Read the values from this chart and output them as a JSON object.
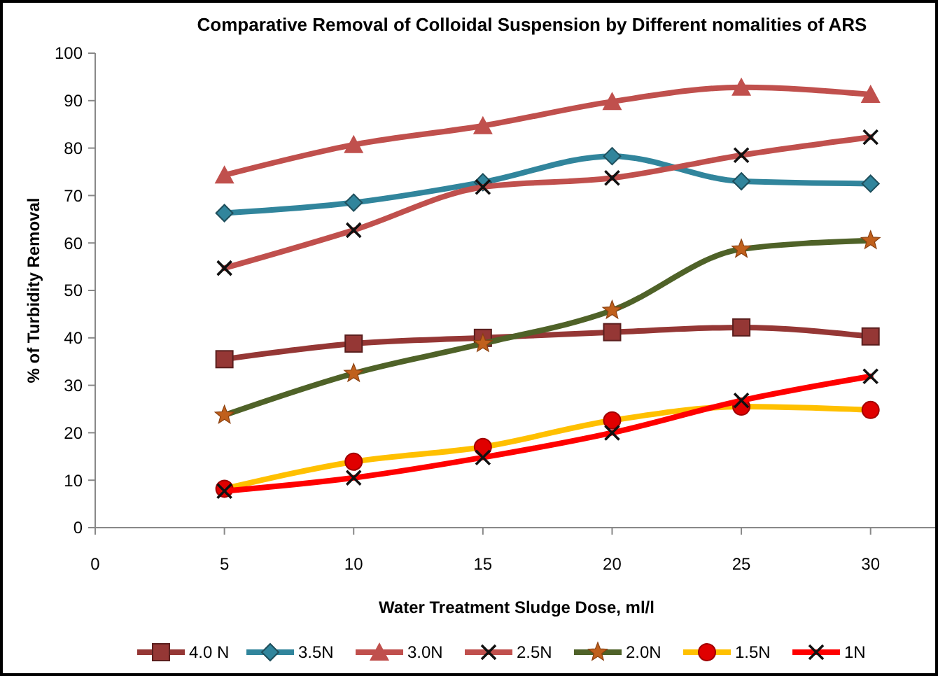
{
  "chart_data": {
    "type": "line",
    "title": "Comparative Removal of Colloidal Suspension by Different nomalities of ARS",
    "xlabel": "Water Treatment Sludge Dose, ml/l",
    "ylabel": "% of Turbidity Removal",
    "x": [
      5,
      10,
      15,
      20,
      25,
      30
    ],
    "xlim": [
      0,
      32.5
    ],
    "xticks": [
      0,
      5,
      10,
      15,
      20,
      25,
      30
    ],
    "ylim": [
      0,
      100
    ],
    "yticks": [
      0,
      10,
      20,
      30,
      40,
      50,
      60,
      70,
      80,
      90,
      100
    ],
    "grid": false,
    "legend": "bottom",
    "line_style": "solid",
    "series": [
      {
        "name": "4.0 N",
        "color": "#953735",
        "marker": "square",
        "values": [
          35.5,
          38.8,
          40,
          41.2,
          42.2,
          40.3
        ]
      },
      {
        "name": "3.5N",
        "color": "#31859c",
        "marker": "diamond",
        "values": [
          66.3,
          68.5,
          72.8,
          78.3,
          73,
          72.5
        ]
      },
      {
        "name": "3.0N",
        "color": "#c0504d",
        "marker": "triangle",
        "values": [
          74.3,
          80.7,
          84.7,
          89.8,
          92.8,
          91.3
        ]
      },
      {
        "name": "2.5N",
        "color": "#c0504d",
        "marker": "cross",
        "values": [
          54.7,
          62.7,
          71.8,
          73.7,
          78.5,
          82.3
        ]
      },
      {
        "name": "2.0N",
        "color": "#4f6228",
        "marker": "star",
        "values": [
          23.7,
          32.5,
          38.8,
          45.8,
          58.7,
          60.5
        ]
      },
      {
        "name": "1.5N",
        "color": "#ffc000",
        "marker": "circle",
        "values": [
          8.2,
          13.9,
          17,
          22.6,
          25.5,
          24.8
        ]
      },
      {
        "name": "1N",
        "color": "#ff0000",
        "marker": "cross",
        "values": [
          7.7,
          10.5,
          14.8,
          20,
          26.8,
          31.9
        ]
      }
    ]
  }
}
